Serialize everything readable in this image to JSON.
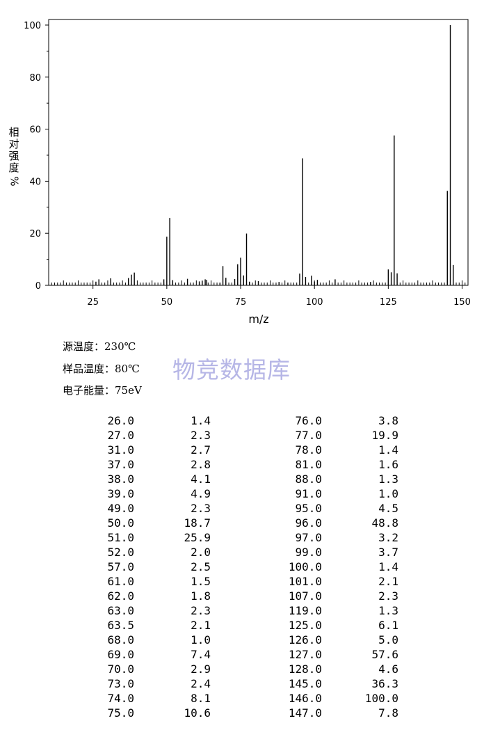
{
  "chart_data": {
    "type": "bar",
    "title": "",
    "xlabel": "m/z",
    "ylabel": "相对强度/%",
    "xlim": [
      10,
      152
    ],
    "ylim": [
      0,
      100
    ],
    "x_ticks": [
      25,
      50,
      75,
      100,
      125,
      150
    ],
    "y_ticks": [
      0,
      20,
      40,
      60,
      80,
      100
    ],
    "grid": false,
    "peaks": [
      {
        "mz": 26.0,
        "intensity": 1.4
      },
      {
        "mz": 27.0,
        "intensity": 2.3
      },
      {
        "mz": 31.0,
        "intensity": 2.7
      },
      {
        "mz": 37.0,
        "intensity": 2.8
      },
      {
        "mz": 38.0,
        "intensity": 4.1
      },
      {
        "mz": 39.0,
        "intensity": 4.9
      },
      {
        "mz": 49.0,
        "intensity": 2.3
      },
      {
        "mz": 50.0,
        "intensity": 18.7
      },
      {
        "mz": 51.0,
        "intensity": 25.9
      },
      {
        "mz": 52.0,
        "intensity": 2.0
      },
      {
        "mz": 57.0,
        "intensity": 2.5
      },
      {
        "mz": 61.0,
        "intensity": 1.5
      },
      {
        "mz": 62.0,
        "intensity": 1.8
      },
      {
        "mz": 63.0,
        "intensity": 2.3
      },
      {
        "mz": 63.5,
        "intensity": 2.1
      },
      {
        "mz": 68.0,
        "intensity": 1.0
      },
      {
        "mz": 69.0,
        "intensity": 7.4
      },
      {
        "mz": 70.0,
        "intensity": 2.9
      },
      {
        "mz": 73.0,
        "intensity": 2.4
      },
      {
        "mz": 74.0,
        "intensity": 8.1
      },
      {
        "mz": 75.0,
        "intensity": 10.6
      },
      {
        "mz": 76.0,
        "intensity": 3.8
      },
      {
        "mz": 77.0,
        "intensity": 19.9
      },
      {
        "mz": 78.0,
        "intensity": 1.4
      },
      {
        "mz": 81.0,
        "intensity": 1.6
      },
      {
        "mz": 88.0,
        "intensity": 1.3
      },
      {
        "mz": 91.0,
        "intensity": 1.0
      },
      {
        "mz": 95.0,
        "intensity": 4.5
      },
      {
        "mz": 96.0,
        "intensity": 48.8
      },
      {
        "mz": 97.0,
        "intensity": 3.2
      },
      {
        "mz": 99.0,
        "intensity": 3.7
      },
      {
        "mz": 100.0,
        "intensity": 1.4
      },
      {
        "mz": 101.0,
        "intensity": 2.1
      },
      {
        "mz": 107.0,
        "intensity": 2.3
      },
      {
        "mz": 119.0,
        "intensity": 1.3
      },
      {
        "mz": 125.0,
        "intensity": 6.1
      },
      {
        "mz": 126.0,
        "intensity": 5.0
      },
      {
        "mz": 127.0,
        "intensity": 57.6
      },
      {
        "mz": 128.0,
        "intensity": 4.6
      },
      {
        "mz": 145.0,
        "intensity": 36.3
      },
      {
        "mz": 146.0,
        "intensity": 100.0
      },
      {
        "mz": 147.0,
        "intensity": 7.8
      }
    ]
  },
  "ylabel_chars": [
    "相",
    "对",
    "强",
    "度",
    "%"
  ],
  "meta": {
    "source_temp": {
      "label": "源温度：",
      "value": "230℃"
    },
    "sample_temp": {
      "label": "样品温度：",
      "value": "80℃"
    },
    "electron_energy": {
      "label": "电子能量：",
      "value": "75eV"
    }
  },
  "watermark": "物竞数据库",
  "table_rows": [
    [
      "26.0",
      "1.4",
      "76.0",
      "3.8"
    ],
    [
      "27.0",
      "2.3",
      "77.0",
      "19.9"
    ],
    [
      "31.0",
      "2.7",
      "78.0",
      "1.4"
    ],
    [
      "37.0",
      "2.8",
      "81.0",
      "1.6"
    ],
    [
      "38.0",
      "4.1",
      "88.0",
      "1.3"
    ],
    [
      "39.0",
      "4.9",
      "91.0",
      "1.0"
    ],
    [
      "49.0",
      "2.3",
      "95.0",
      "4.5"
    ],
    [
      "50.0",
      "18.7",
      "96.0",
      "48.8"
    ],
    [
      "51.0",
      "25.9",
      "97.0",
      "3.2"
    ],
    [
      "52.0",
      "2.0",
      "99.0",
      "3.7"
    ],
    [
      "57.0",
      "2.5",
      "100.0",
      "1.4"
    ],
    [
      "61.0",
      "1.5",
      "101.0",
      "2.1"
    ],
    [
      "62.0",
      "1.8",
      "107.0",
      "2.3"
    ],
    [
      "63.0",
      "2.3",
      "119.0",
      "1.3"
    ],
    [
      "63.5",
      "2.1",
      "125.0",
      "6.1"
    ],
    [
      "68.0",
      "1.0",
      "126.0",
      "5.0"
    ],
    [
      "69.0",
      "7.4",
      "127.0",
      "57.6"
    ],
    [
      "70.0",
      "2.9",
      "128.0",
      "4.6"
    ],
    [
      "73.0",
      "2.4",
      "145.0",
      "36.3"
    ],
    [
      "74.0",
      "8.1",
      "146.0",
      "100.0"
    ],
    [
      "75.0",
      "10.6",
      "147.0",
      "7.8"
    ]
  ]
}
